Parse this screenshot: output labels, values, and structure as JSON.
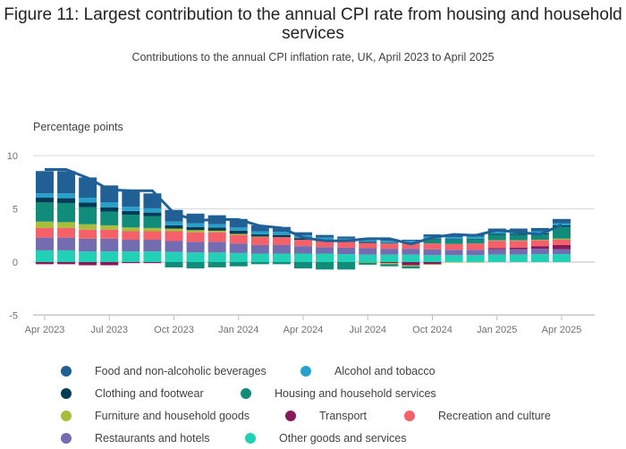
{
  "title": "Figure 11: Largest contribution to the annual CPI rate from housing and household services",
  "subtitle": "Contributions to the annual CPI inflation rate, UK, April 2023 to April 2025",
  "colors": {
    "Food and non-alcoholic beverages": "#206095",
    "Alcohol and tobacco": "#27a0cc",
    "Clothing and footwear": "#003c57",
    "Housing and household services": "#118c7b",
    "Furniture and household goods": "#a8bd3a",
    "Transport": "#871a5b",
    "Recreation and culture": "#f66068",
    "Restaurants and hotels": "#746cb1",
    "Other goods and services": "#22d0b6",
    "CPI": "#206095"
  },
  "chart_data": {
    "type": "bar",
    "stacked": true,
    "ylabel": "Percentage points",
    "ylim": [
      -5,
      10
    ],
    "yticks": [
      -5,
      0,
      5,
      10
    ],
    "categories": [
      "Apr 2023",
      "May 2023",
      "Jun 2023",
      "Jul 2023",
      "Aug 2023",
      "Sep 2023",
      "Oct 2023",
      "Nov 2023",
      "Dec 2023",
      "Jan 2024",
      "Feb 2024",
      "Mar 2024",
      "Apr 2024",
      "May 2024",
      "Jun 2024",
      "Jul 2024",
      "Aug 2024",
      "Sep 2024",
      "Oct 2024",
      "Nov 2024",
      "Dec 2024",
      "Jan 2025",
      "Feb 2025",
      "Mar 2025",
      "Apr 2025"
    ],
    "xtick_labels": [
      "Apr 2023",
      "Jul 2023",
      "Oct 2023",
      "Jan 2024",
      "Apr 2024",
      "Jul 2024",
      "Oct 2024",
      "Jan 2025",
      "Apr 2025"
    ],
    "xtick_indices": [
      0,
      3,
      6,
      9,
      12,
      15,
      18,
      21,
      24
    ],
    "series": [
      {
        "name": "Other goods and services",
        "values": [
          1.1,
          1.1,
          1.0,
          1.0,
          1.0,
          1.0,
          0.95,
          0.9,
          0.9,
          0.85,
          0.8,
          0.8,
          0.8,
          0.8,
          0.75,
          0.7,
          0.7,
          0.7,
          0.65,
          0.65,
          0.65,
          0.7,
          0.7,
          0.75,
          0.75
        ]
      },
      {
        "name": "Restaurants and hotels",
        "values": [
          1.2,
          1.2,
          1.2,
          1.2,
          1.1,
          1.1,
          1.0,
          1.0,
          1.0,
          0.9,
          0.8,
          0.8,
          0.7,
          0.6,
          0.6,
          0.6,
          0.55,
          0.55,
          0.55,
          0.5,
          0.5,
          0.5,
          0.5,
          0.5,
          0.45
        ]
      },
      {
        "name": "Transport",
        "values": [
          -0.2,
          -0.2,
          -0.3,
          -0.3,
          -0.1,
          -0.1,
          0.05,
          0.0,
          0.0,
          0.0,
          0.0,
          0.0,
          0.0,
          0.0,
          0.0,
          0.0,
          -0.1,
          -0.3,
          -0.2,
          0.0,
          0.0,
          0.1,
          0.15,
          0.25,
          0.4
        ]
      },
      {
        "name": "Recreation and culture",
        "values": [
          0.9,
          0.9,
          0.85,
          0.85,
          0.8,
          0.8,
          0.9,
          0.9,
          0.9,
          0.8,
          0.75,
          0.75,
          0.6,
          0.55,
          0.55,
          0.5,
          0.5,
          0.5,
          0.55,
          0.55,
          0.6,
          0.7,
          0.65,
          0.55,
          0.5
        ]
      },
      {
        "name": "Furniture and household goods",
        "values": [
          0.6,
          0.55,
          0.5,
          0.4,
          0.35,
          0.3,
          0.25,
          0.2,
          0.15,
          0.1,
          0.05,
          0.0,
          0.0,
          0.0,
          0.0,
          -0.05,
          -0.1,
          -0.1,
          -0.05,
          -0.05,
          -0.05,
          0.05,
          0.05,
          0.05,
          0.1
        ]
      },
      {
        "name": "Housing and household services",
        "values": [
          1.8,
          1.8,
          1.6,
          1.3,
          1.2,
          1.1,
          -0.5,
          -0.6,
          -0.5,
          -0.4,
          -0.2,
          -0.2,
          -0.6,
          -0.7,
          -0.7,
          -0.2,
          -0.2,
          -0.2,
          0.4,
          0.4,
          0.4,
          0.5,
          0.5,
          0.5,
          1.1
        ]
      },
      {
        "name": "Clothing and footwear",
        "values": [
          0.45,
          0.45,
          0.45,
          0.4,
          0.35,
          0.35,
          0.3,
          0.3,
          0.3,
          0.3,
          0.2,
          0.2,
          0.15,
          0.1,
          0.1,
          0.1,
          0.05,
          0.05,
          0.05,
          0.05,
          0.05,
          0.1,
          0.1,
          0.1,
          0.15
        ]
      },
      {
        "name": "Alcohol and tobacco",
        "values": [
          0.4,
          0.45,
          0.45,
          0.45,
          0.4,
          0.4,
          0.35,
          0.35,
          0.3,
          0.3,
          0.3,
          0.3,
          0.25,
          0.25,
          0.2,
          0.2,
          0.2,
          0.2,
          0.2,
          0.2,
          0.2,
          0.2,
          0.2,
          0.2,
          0.2
        ]
      },
      {
        "name": "Food and non-alcoholic beverages",
        "values": [
          2.1,
          2.1,
          1.9,
          1.6,
          1.5,
          1.4,
          1.1,
          0.9,
          0.85,
          0.8,
          0.55,
          0.45,
          0.3,
          0.25,
          0.2,
          0.15,
          0.15,
          0.1,
          0.2,
          0.25,
          0.25,
          0.3,
          0.3,
          0.3,
          0.4
        ]
      }
    ],
    "line": {
      "name": "CPI",
      "values": [
        8.7,
        8.7,
        7.9,
        6.8,
        6.7,
        6.7,
        4.6,
        3.9,
        4.0,
        4.0,
        3.4,
        3.2,
        2.3,
        2.0,
        2.0,
        2.2,
        2.2,
        1.7,
        2.3,
        2.6,
        2.5,
        3.0,
        2.8,
        2.6,
        3.5
      ]
    },
    "legend_position": "bottom",
    "legend": [
      "Food and non-alcoholic beverages",
      "Alcohol and tobacco",
      "Clothing and footwear",
      "Housing and household services",
      "Furniture and household goods",
      "Transport",
      "Recreation and culture",
      "Restaurants and hotels",
      "Other goods and services"
    ]
  }
}
